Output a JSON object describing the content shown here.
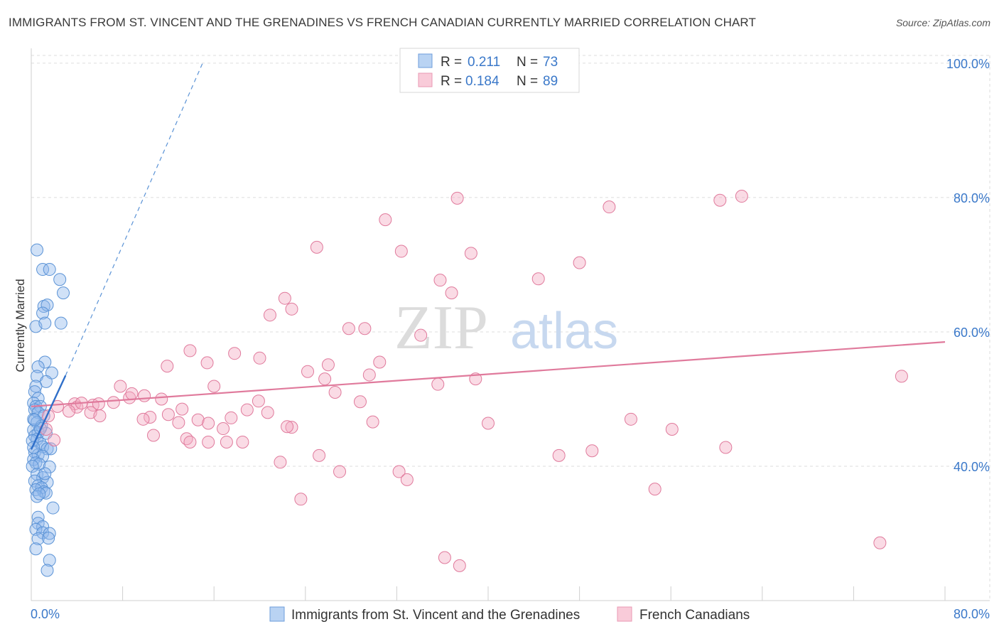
{
  "title": "IMMIGRANTS FROM ST. VINCENT AND THE GRENADINES VS FRENCH CANADIAN CURRENTLY MARRIED CORRELATION CHART",
  "source": "Source: ZipAtlas.com",
  "watermark": {
    "zip": "ZIP",
    "atlas": "atlas"
  },
  "legend_top": [
    {
      "r_label": "R =",
      "r_value": "0.211",
      "n_label": "N =",
      "n_value": "73",
      "color": "#8fb8ec"
    },
    {
      "r_label": "R =",
      "r_value": "0.184",
      "n_label": "N =",
      "n_value": "89",
      "color": "#f4a9c0"
    }
  ],
  "chart_data": {
    "type": "scatter",
    "xlabel": "",
    "ylabel": "Currently Married",
    "xlim": [
      0,
      80
    ],
    "ylim": [
      20,
      102
    ],
    "x_tick_labels": [
      "0.0%",
      "80.0%"
    ],
    "y_ticks": [
      40,
      60,
      80,
      100
    ],
    "y_tick_labels": [
      "40.0%",
      "60.0%",
      "80.0%",
      "100.0%"
    ],
    "grid": true,
    "legend_placement": "bottom",
    "series": [
      {
        "name": "Immigrants from St. Vincent and the Grenadines",
        "color": "#8fb8ec",
        "stroke": "#5b93d6",
        "trend": {
          "x": [
            0.0,
            3.0
          ],
          "y": [
            42.5,
            53.5
          ],
          "extended_to": [
            15.0,
            100.0
          ]
        },
        "points": [
          [
            0.5,
            72.2
          ],
          [
            1.0,
            69.3
          ],
          [
            1.6,
            69.3
          ],
          [
            2.5,
            67.8
          ],
          [
            2.8,
            65.8
          ],
          [
            1.1,
            63.8
          ],
          [
            1.4,
            64.0
          ],
          [
            1.0,
            62.8
          ],
          [
            0.4,
            60.8
          ],
          [
            1.2,
            61.3
          ],
          [
            2.6,
            61.3
          ],
          [
            1.2,
            55.5
          ],
          [
            0.6,
            54.8
          ],
          [
            1.8,
            53.9
          ],
          [
            0.5,
            53.4
          ],
          [
            1.3,
            52.6
          ],
          [
            0.4,
            51.9
          ],
          [
            0.3,
            51.1
          ],
          [
            0.6,
            50.1
          ],
          [
            0.2,
            49.4
          ],
          [
            0.4,
            48.9
          ],
          [
            0.8,
            48.9
          ],
          [
            0.3,
            48.4
          ],
          [
            0.6,
            48.0
          ],
          [
            1.1,
            47.5
          ],
          [
            0.2,
            47.0
          ],
          [
            0.5,
            46.5
          ],
          [
            0.9,
            46.0
          ],
          [
            0.2,
            45.4
          ],
          [
            0.6,
            45.0
          ],
          [
            1.3,
            44.9
          ],
          [
            0.3,
            44.5
          ],
          [
            0.5,
            44.0
          ],
          [
            0.1,
            43.8
          ],
          [
            0.8,
            43.4
          ],
          [
            1.0,
            42.9
          ],
          [
            1.4,
            42.6
          ],
          [
            1.7,
            42.6
          ],
          [
            0.3,
            42.1
          ],
          [
            0.6,
            41.7
          ],
          [
            1.0,
            41.5
          ],
          [
            0.2,
            41.0
          ],
          [
            0.4,
            40.5
          ],
          [
            0.7,
            40.3
          ],
          [
            0.1,
            40.0
          ],
          [
            1.6,
            39.9
          ],
          [
            0.5,
            38.8
          ],
          [
            1.0,
            38.3
          ],
          [
            0.3,
            37.8
          ],
          [
            1.4,
            37.6
          ],
          [
            0.6,
            37.1
          ],
          [
            0.9,
            36.8
          ],
          [
            0.4,
            36.5
          ],
          [
            1.1,
            36.2
          ],
          [
            1.3,
            36.0
          ],
          [
            0.5,
            35.5
          ],
          [
            1.9,
            33.8
          ],
          [
            0.6,
            32.4
          ],
          [
            0.6,
            31.5
          ],
          [
            1.0,
            31.0
          ],
          [
            0.4,
            30.6
          ],
          [
            1.0,
            30.1
          ],
          [
            1.6,
            30.0
          ],
          [
            0.6,
            29.2
          ],
          [
            1.5,
            29.3
          ],
          [
            0.4,
            27.7
          ],
          [
            1.6,
            26.0
          ],
          [
            1.4,
            24.5
          ],
          [
            0.2,
            42.8
          ],
          [
            0.8,
            45.6
          ],
          [
            0.3,
            46.9
          ],
          [
            1.2,
            38.9
          ],
          [
            0.7,
            35.9
          ]
        ]
      },
      {
        "name": "French Canadians",
        "color": "#f4a9c0",
        "stroke": "#e07a9c",
        "trend": {
          "x": [
            0.0,
            80.0
          ],
          "y": [
            48.9,
            58.5
          ]
        },
        "points": [
          [
            37.3,
            79.9
          ],
          [
            50.6,
            78.6
          ],
          [
            60.3,
            79.6
          ],
          [
            62.2,
            80.2
          ],
          [
            31.0,
            76.7
          ],
          [
            25.0,
            72.6
          ],
          [
            32.4,
            72.0
          ],
          [
            38.5,
            71.7
          ],
          [
            48.0,
            70.3
          ],
          [
            44.4,
            67.9
          ],
          [
            35.8,
            67.7
          ],
          [
            36.8,
            65.8
          ],
          [
            22.2,
            65.0
          ],
          [
            22.8,
            63.4
          ],
          [
            20.9,
            62.5
          ],
          [
            27.8,
            60.5
          ],
          [
            29.2,
            60.5
          ],
          [
            34.1,
            59.5
          ],
          [
            13.9,
            57.2
          ],
          [
            17.8,
            56.8
          ],
          [
            20.0,
            56.1
          ],
          [
            15.4,
            55.4
          ],
          [
            11.9,
            54.9
          ],
          [
            26.0,
            55.1
          ],
          [
            30.5,
            55.5
          ],
          [
            24.2,
            54.1
          ],
          [
            29.6,
            53.6
          ],
          [
            25.7,
            53.0
          ],
          [
            38.9,
            53.0
          ],
          [
            35.6,
            52.2
          ],
          [
            16.0,
            51.9
          ],
          [
            7.8,
            51.9
          ],
          [
            8.6,
            50.2
          ],
          [
            9.9,
            50.5
          ],
          [
            11.4,
            50.0
          ],
          [
            19.9,
            49.7
          ],
          [
            28.8,
            49.6
          ],
          [
            3.8,
            49.3
          ],
          [
            5.4,
            49.1
          ],
          [
            5.9,
            49.3
          ],
          [
            7.2,
            49.5
          ],
          [
            2.3,
            48.9
          ],
          [
            4.0,
            48.8
          ],
          [
            13.2,
            48.5
          ],
          [
            3.3,
            48.2
          ],
          [
            5.2,
            48.0
          ],
          [
            20.7,
            48.0
          ],
          [
            18.9,
            48.4
          ],
          [
            12.0,
            47.7
          ],
          [
            6.0,
            47.5
          ],
          [
            10.4,
            47.3
          ],
          [
            9.8,
            47.0
          ],
          [
            14.6,
            46.9
          ],
          [
            12.9,
            46.5
          ],
          [
            15.5,
            46.4
          ],
          [
            22.8,
            45.8
          ],
          [
            16.8,
            45.6
          ],
          [
            22.4,
            45.9
          ],
          [
            29.9,
            46.6
          ],
          [
            40.0,
            46.4
          ],
          [
            52.5,
            47.0
          ],
          [
            56.1,
            45.5
          ],
          [
            10.7,
            44.6
          ],
          [
            13.6,
            44.1
          ],
          [
            13.9,
            43.6
          ],
          [
            15.5,
            43.6
          ],
          [
            17.1,
            43.6
          ],
          [
            18.5,
            43.6
          ],
          [
            49.1,
            42.3
          ],
          [
            60.8,
            42.8
          ],
          [
            25.2,
            41.6
          ],
          [
            46.2,
            41.6
          ],
          [
            21.8,
            40.6
          ],
          [
            27.0,
            39.2
          ],
          [
            32.2,
            39.2
          ],
          [
            32.9,
            38.0
          ],
          [
            54.6,
            36.6
          ],
          [
            23.6,
            35.1
          ],
          [
            36.2,
            26.4
          ],
          [
            37.5,
            25.2
          ],
          [
            74.3,
            28.6
          ],
          [
            76.2,
            53.4
          ],
          [
            2.0,
            43.9
          ],
          [
            4.4,
            49.4
          ],
          [
            1.5,
            47.5
          ],
          [
            8.8,
            50.8
          ],
          [
            17.5,
            47.2
          ],
          [
            26.6,
            51.0
          ],
          [
            1.3,
            45.5
          ]
        ]
      }
    ]
  }
}
